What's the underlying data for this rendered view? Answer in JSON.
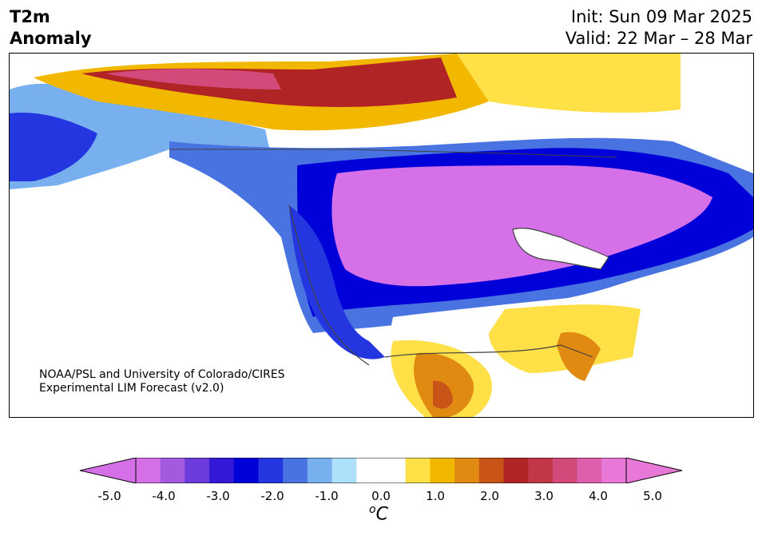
{
  "header": {
    "title_line1": "T2m",
    "title_line2": "Anomaly",
    "init": "Init: Sun 09 Mar 2025",
    "valid": "Valid: 22 Mar – 28 Mar"
  },
  "credit": {
    "line1": "NOAA/PSL and University of Colorado/CIRES",
    "line2": "Experimental LIM Forecast (v2.0)"
  },
  "colorbar": {
    "ticks": [
      "-5.0",
      "-4.0",
      "-3.0",
      "-2.0",
      "-1.0",
      "0.0",
      "1.0",
      "2.0",
      "3.0",
      "4.0",
      "5.0"
    ],
    "colors": [
      "#d670e8",
      "#a25adf",
      "#6c3bdc",
      "#3418d8",
      "#0000d8",
      "#2436df",
      "#4a73e2",
      "#77afef",
      "#aee0fb",
      "#ffffff",
      "#ffffff",
      "#ffe047",
      "#f2b800",
      "#e08a12",
      "#c85418",
      "#b02425",
      "#c23748",
      "#d14a7a",
      "#dd5fac",
      "#e878d8"
    ],
    "unit": "C"
  },
  "map": {
    "anomaly_colors": {
      "deep_cold": "#d670e8",
      "cold_purple": "#a25adf",
      "cold_blue": "#0000d8",
      "cool": "#4a73e2",
      "slight_cool": "#aee0fb",
      "warm": "#f2b800",
      "hot": "#e08a12",
      "very_hot": "#b02425",
      "extreme": "#d14a7a"
    }
  }
}
